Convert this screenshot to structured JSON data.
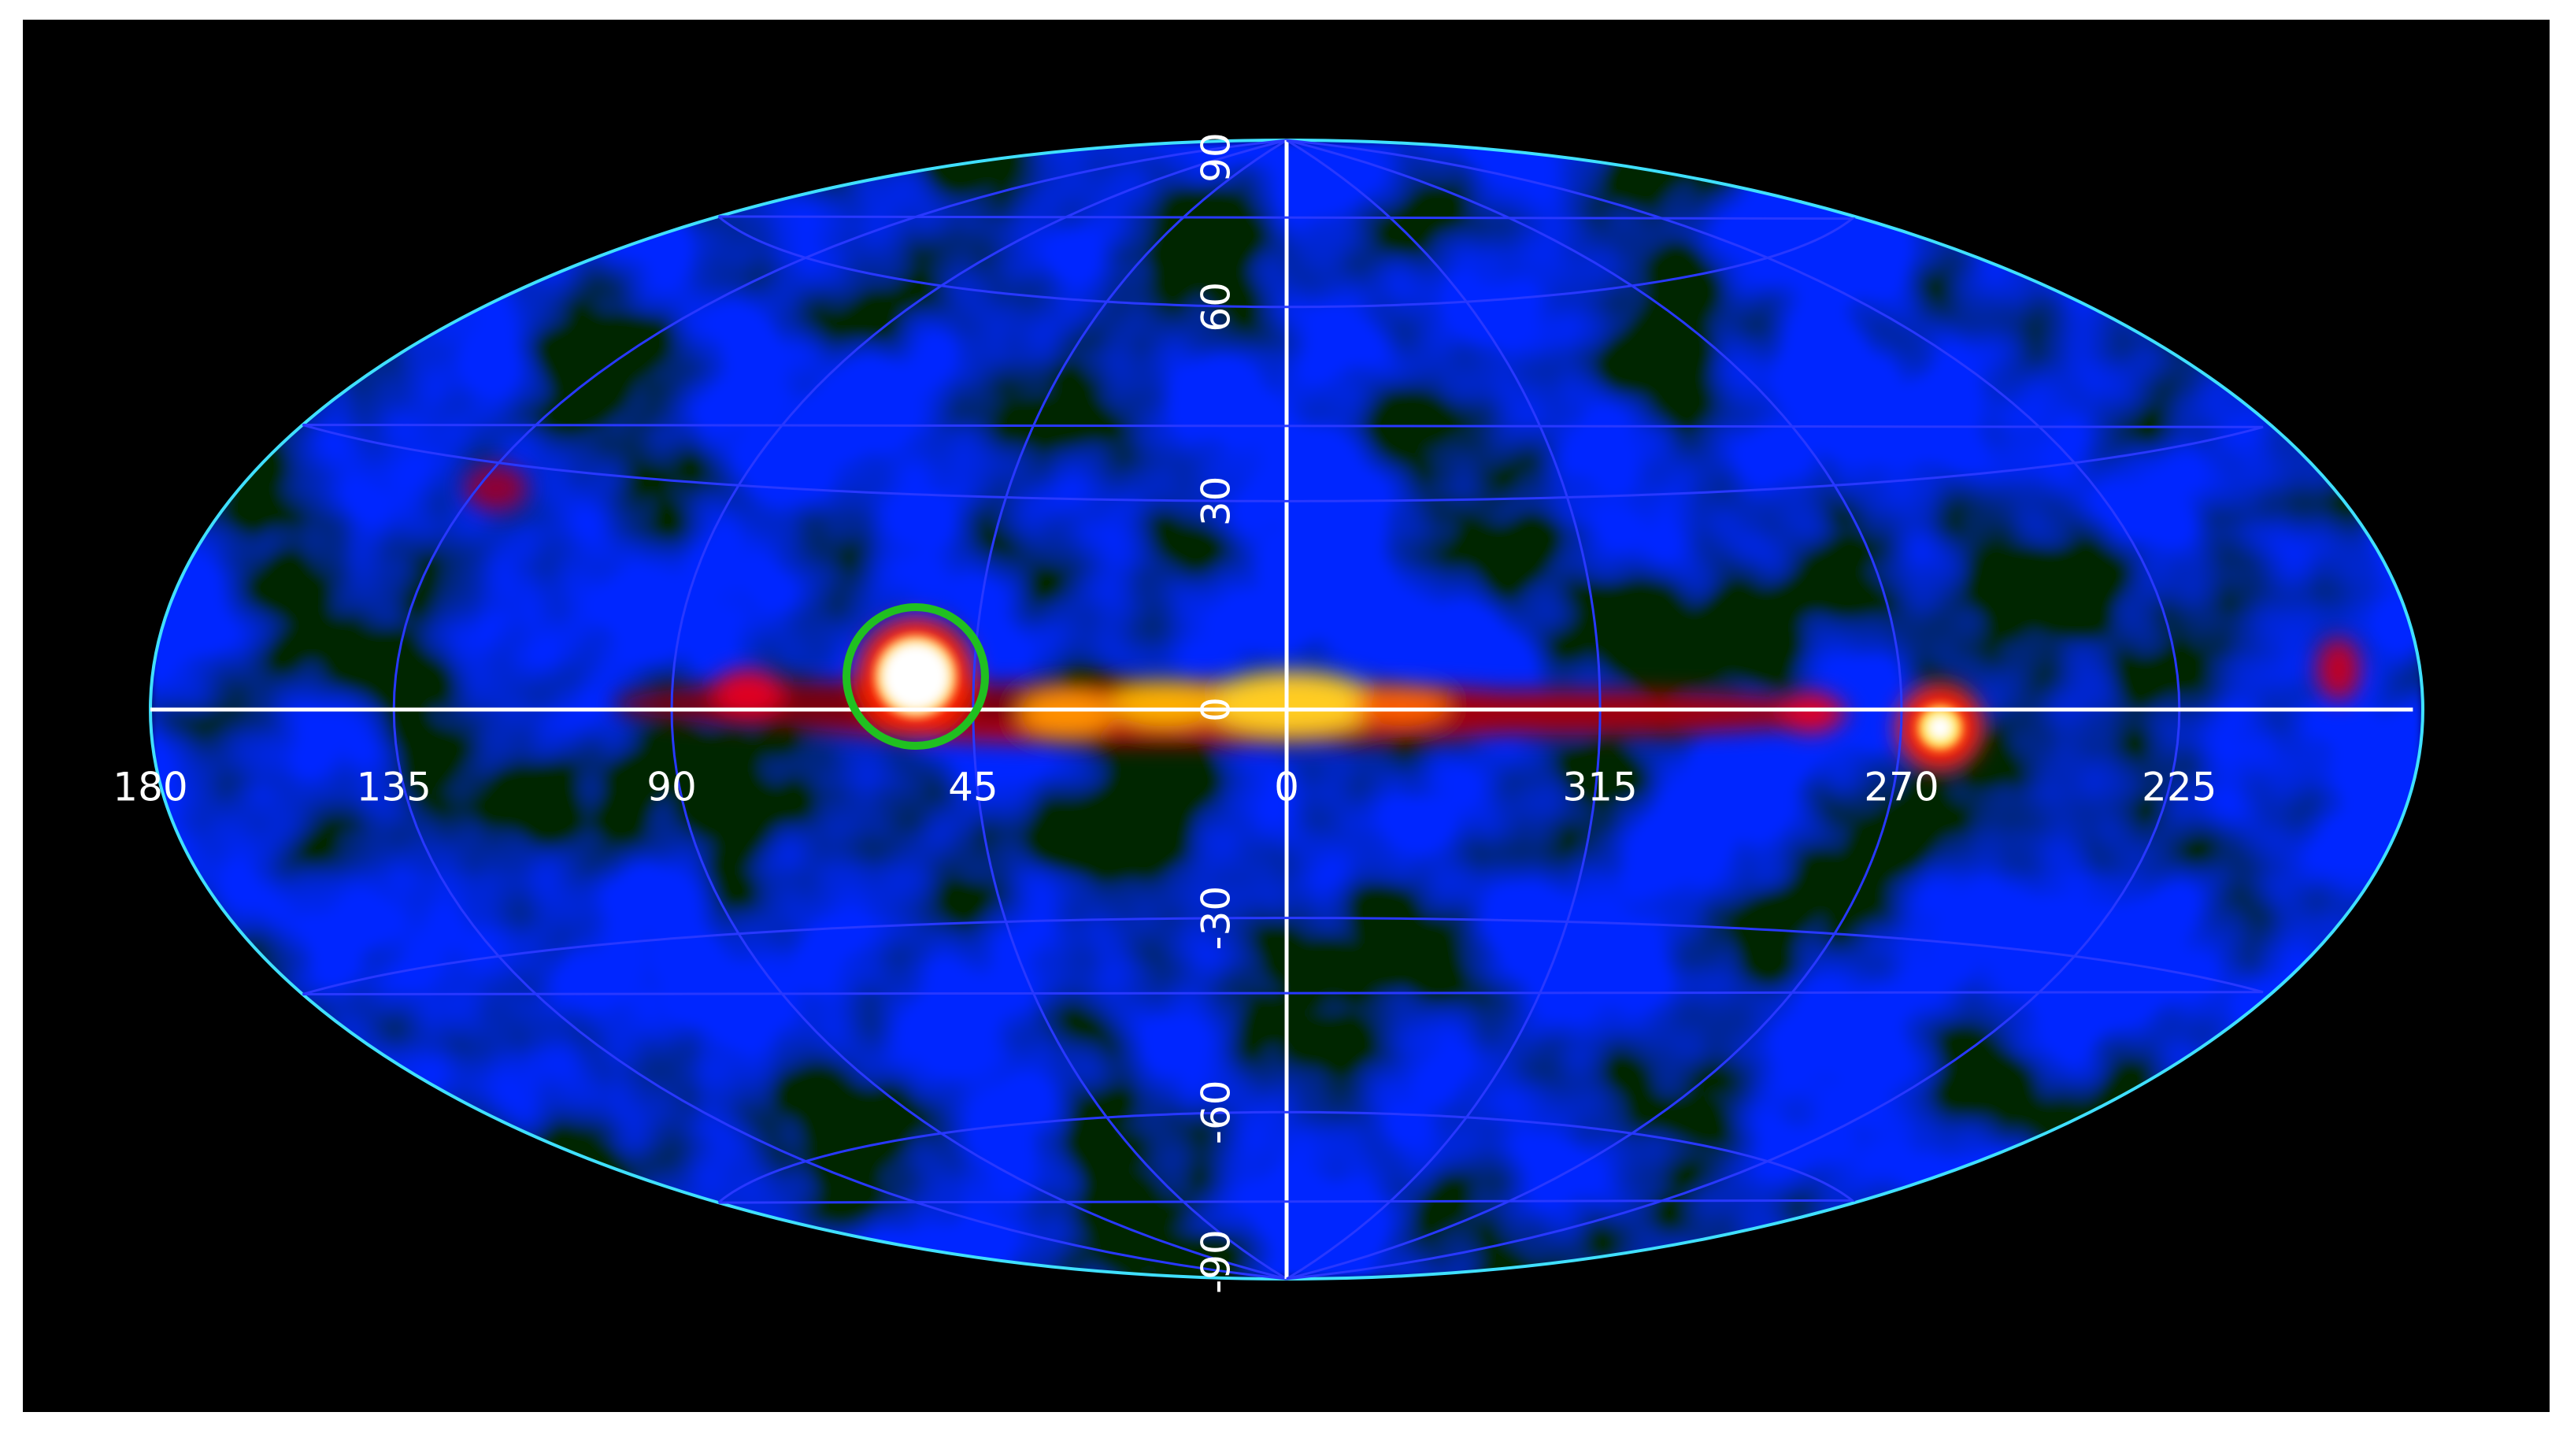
{
  "map": {
    "longitude_labels": [
      180,
      135,
      90,
      45,
      0,
      315,
      270,
      225
    ],
    "latitude_labels": [
      90,
      60,
      30,
      0,
      -30,
      -60,
      -90
    ]
  }
}
